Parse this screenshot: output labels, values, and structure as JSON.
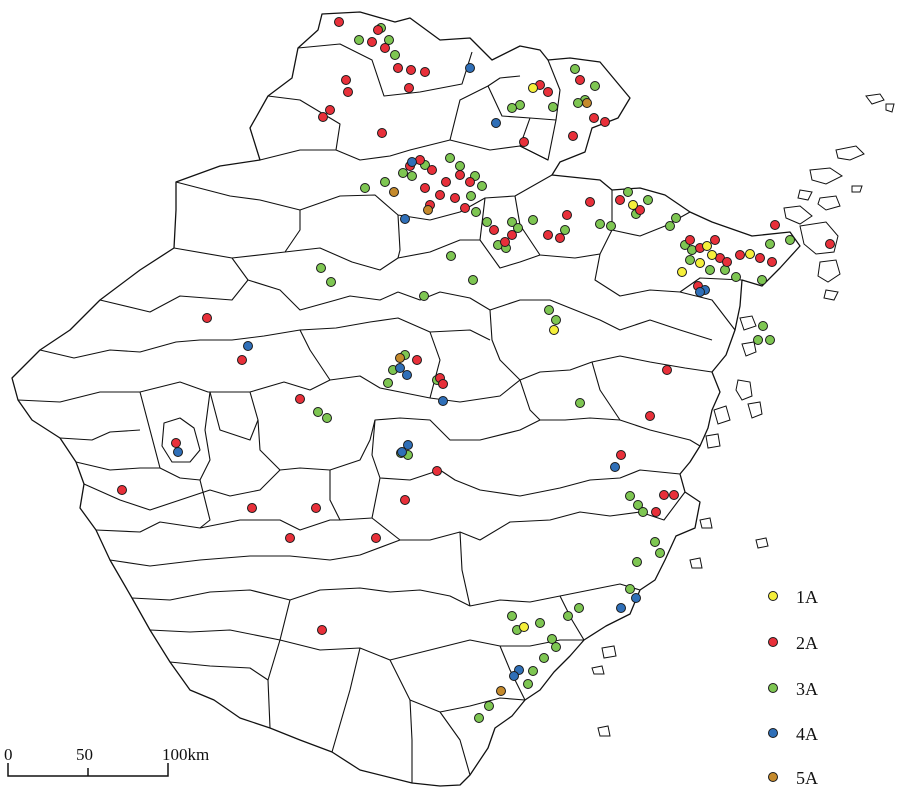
{
  "legend": {
    "items": [
      {
        "label": "1A",
        "color": "#f5ef3a"
      },
      {
        "label": "2A",
        "color": "#e8303a"
      },
      {
        "label": "3A",
        "color": "#7ec652"
      },
      {
        "label": "4A",
        "color": "#2f6fb8"
      },
      {
        "label": "5A",
        "color": "#c58a2c"
      }
    ]
  },
  "scale_bar": {
    "ticks": [
      "0",
      "50",
      "100km"
    ]
  },
  "points": {
    "1A": [
      [
        533,
        88
      ],
      [
        633,
        205
      ],
      [
        700,
        263
      ],
      [
        712,
        255
      ],
      [
        750,
        254
      ],
      [
        682,
        272
      ],
      [
        554,
        330
      ],
      [
        524,
        627
      ],
      [
        707,
        246
      ]
    ],
    "2A": [
      [
        339,
        22
      ],
      [
        378,
        30
      ],
      [
        372,
        42
      ],
      [
        385,
        48
      ],
      [
        398,
        68
      ],
      [
        411,
        70
      ],
      [
        425,
        72
      ],
      [
        409,
        88
      ],
      [
        346,
        80
      ],
      [
        348,
        92
      ],
      [
        330,
        110
      ],
      [
        323,
        117
      ],
      [
        382,
        133
      ],
      [
        410,
        166
      ],
      [
        420,
        160
      ],
      [
        432,
        170
      ],
      [
        446,
        182
      ],
      [
        460,
        175
      ],
      [
        470,
        182
      ],
      [
        425,
        188
      ],
      [
        440,
        195
      ],
      [
        455,
        198
      ],
      [
        465,
        208
      ],
      [
        540,
        85
      ],
      [
        548,
        92
      ],
      [
        580,
        80
      ],
      [
        594,
        118
      ],
      [
        605,
        122
      ],
      [
        573,
        136
      ],
      [
        524,
        142
      ],
      [
        430,
        205
      ],
      [
        494,
        230
      ],
      [
        505,
        242
      ],
      [
        512,
        235
      ],
      [
        548,
        235
      ],
      [
        560,
        238
      ],
      [
        567,
        215
      ],
      [
        590,
        202
      ],
      [
        620,
        200
      ],
      [
        640,
        210
      ],
      [
        690,
        240
      ],
      [
        700,
        248
      ],
      [
        715,
        240
      ],
      [
        720,
        258
      ],
      [
        727,
        262
      ],
      [
        740,
        255
      ],
      [
        760,
        258
      ],
      [
        772,
        262
      ],
      [
        775,
        225
      ],
      [
        830,
        244
      ],
      [
        698,
        286
      ],
      [
        207,
        318
      ],
      [
        242,
        360
      ],
      [
        300,
        399
      ],
      [
        417,
        360
      ],
      [
        440,
        378
      ],
      [
        443,
        384
      ],
      [
        176,
        443
      ],
      [
        122,
        490
      ],
      [
        252,
        508
      ],
      [
        316,
        508
      ],
      [
        290,
        538
      ],
      [
        376,
        538
      ],
      [
        405,
        500
      ],
      [
        437,
        471
      ],
      [
        621,
        455
      ],
      [
        667,
        370
      ],
      [
        650,
        416
      ],
      [
        664,
        495
      ],
      [
        674,
        495
      ],
      [
        656,
        512
      ],
      [
        322,
        630
      ]
    ],
    "3A": [
      [
        359,
        40
      ],
      [
        381,
        28
      ],
      [
        389,
        40
      ],
      [
        395,
        55
      ],
      [
        575,
        69
      ],
      [
        595,
        86
      ],
      [
        585,
        100
      ],
      [
        578,
        103
      ],
      [
        520,
        105
      ],
      [
        512,
        108
      ],
      [
        553,
        107
      ],
      [
        403,
        173
      ],
      [
        412,
        176
      ],
      [
        425,
        165
      ],
      [
        450,
        158
      ],
      [
        460,
        166
      ],
      [
        475,
        176
      ],
      [
        482,
        186
      ],
      [
        385,
        182
      ],
      [
        365,
        188
      ],
      [
        471,
        196
      ],
      [
        476,
        212
      ],
      [
        487,
        222
      ],
      [
        512,
        222
      ],
      [
        518,
        228
      ],
      [
        498,
        245
      ],
      [
        506,
        248
      ],
      [
        533,
        220
      ],
      [
        565,
        230
      ],
      [
        600,
        224
      ],
      [
        611,
        226
      ],
      [
        628,
        192
      ],
      [
        636,
        214
      ],
      [
        648,
        200
      ],
      [
        670,
        226
      ],
      [
        676,
        218
      ],
      [
        685,
        245
      ],
      [
        692,
        250
      ],
      [
        690,
        260
      ],
      [
        710,
        270
      ],
      [
        725,
        270
      ],
      [
        736,
        277
      ],
      [
        762,
        280
      ],
      [
        770,
        244
      ],
      [
        790,
        240
      ],
      [
        321,
        268
      ],
      [
        331,
        282
      ],
      [
        451,
        256
      ],
      [
        473,
        280
      ],
      [
        424,
        296
      ],
      [
        549,
        310
      ],
      [
        556,
        320
      ],
      [
        763,
        326
      ],
      [
        758,
        340
      ],
      [
        770,
        340
      ],
      [
        405,
        355
      ],
      [
        393,
        370
      ],
      [
        388,
        383
      ],
      [
        437,
        380
      ],
      [
        318,
        412
      ],
      [
        327,
        418
      ],
      [
        580,
        403
      ],
      [
        401,
        453
      ],
      [
        408,
        455
      ],
      [
        630,
        496
      ],
      [
        638,
        505
      ],
      [
        643,
        512
      ],
      [
        655,
        542
      ],
      [
        660,
        553
      ],
      [
        637,
        562
      ],
      [
        630,
        589
      ],
      [
        512,
        616
      ],
      [
        517,
        630
      ],
      [
        540,
        623
      ],
      [
        568,
        616
      ],
      [
        579,
        608
      ],
      [
        552,
        639
      ],
      [
        556,
        647
      ],
      [
        544,
        658
      ],
      [
        533,
        671
      ],
      [
        489,
        706
      ],
      [
        479,
        718
      ],
      [
        528,
        684
      ]
    ],
    "4A": [
      [
        412,
        162
      ],
      [
        470,
        68
      ],
      [
        496,
        123
      ],
      [
        405,
        219
      ],
      [
        400,
        368
      ],
      [
        407,
        375
      ],
      [
        178,
        452
      ],
      [
        408,
        445
      ],
      [
        402,
        452
      ],
      [
        248,
        346
      ],
      [
        443,
        401
      ],
      [
        615,
        467
      ],
      [
        705,
        290
      ],
      [
        700,
        292
      ],
      [
        519,
        670
      ],
      [
        514,
        676
      ],
      [
        636,
        598
      ],
      [
        621,
        608
      ]
    ],
    "5A": [
      [
        587,
        103
      ],
      [
        394,
        192
      ],
      [
        428,
        210
      ],
      [
        400,
        358
      ],
      [
        501,
        691
      ]
    ]
  }
}
